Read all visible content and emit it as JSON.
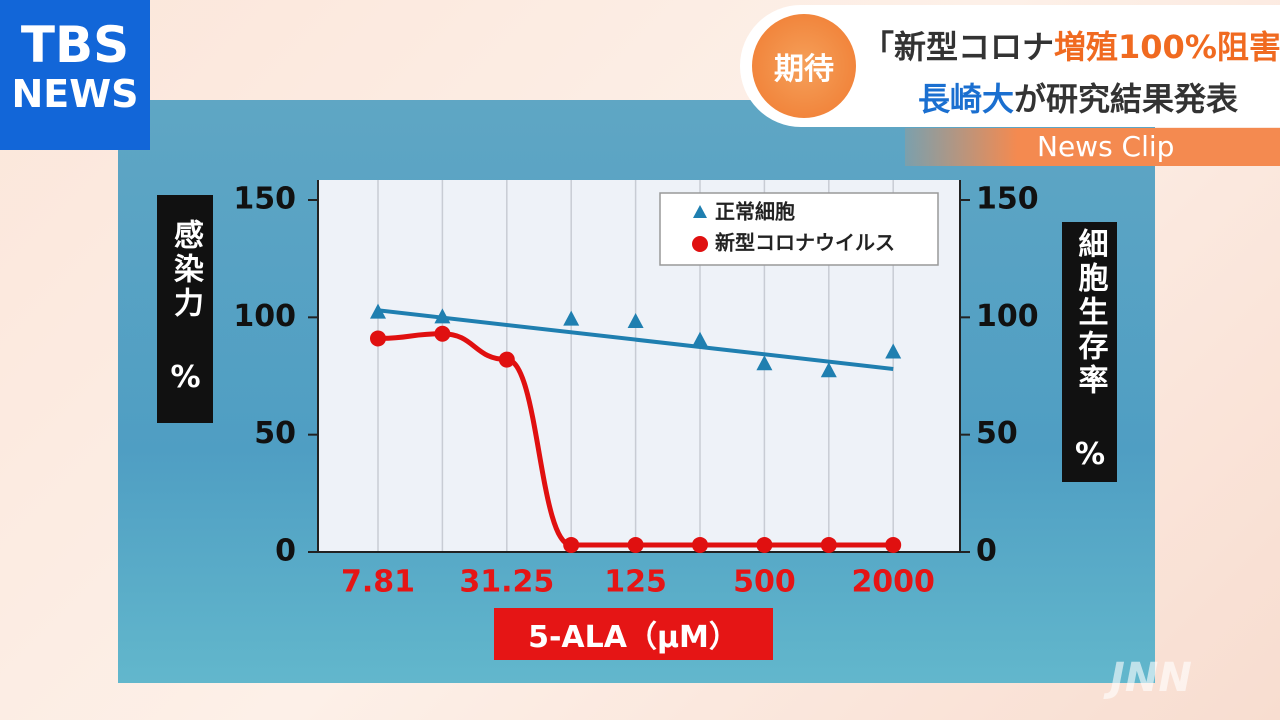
{
  "logo": {
    "line1": "TBS",
    "line2": "NEWS"
  },
  "header": {
    "badge": "期待",
    "headline": [
      "「新型コロナ",
      "増殖100%阻害",
      "」"
    ],
    "subheadline": [
      "長崎大",
      "が研究結果発表"
    ],
    "clip": "News Clip"
  },
  "watermark": "JNN",
  "chart_data": {
    "type": "line",
    "categories": [
      "7.81",
      null,
      "31.25",
      null,
      "125",
      null,
      "500",
      null,
      "2000"
    ],
    "xlabel": "5-ALA（μM）",
    "ylabel": "感染力 %",
    "y2label": "細胞生存率 %",
    "ylim": [
      0,
      150
    ],
    "yticks": [
      0,
      50,
      100,
      150
    ],
    "y2lim": [
      0,
      150
    ],
    "y2ticks": [
      0,
      50,
      100,
      150
    ],
    "grid": true,
    "legend": "top-right",
    "series": [
      {
        "name": "正常細胞",
        "color": "#1f7fb0",
        "marker": "triangle",
        "axis": "y2",
        "values": [
          102,
          100,
          null,
          99,
          98,
          90,
          80,
          77,
          85
        ],
        "trend": [
          103,
          78
        ]
      },
      {
        "name": "新型コロナウイルス",
        "color": "#e01010",
        "marker": "circle",
        "smooth": true,
        "values": [
          91,
          93,
          82,
          3,
          3,
          3,
          3,
          3,
          3
        ]
      }
    ]
  }
}
